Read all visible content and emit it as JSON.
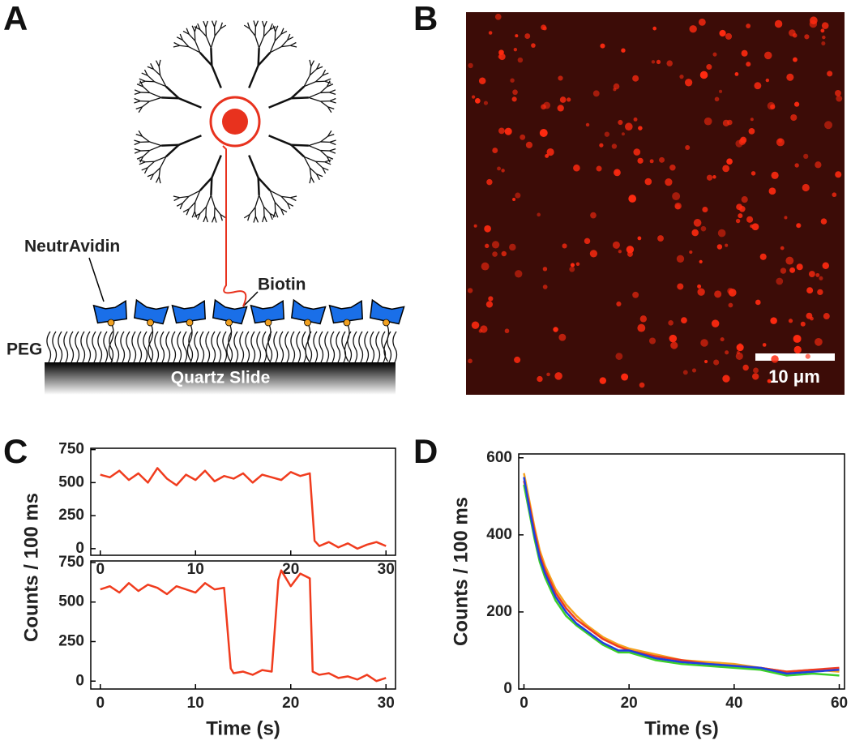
{
  "panel_labels": [
    "A",
    "B",
    "C",
    "D"
  ],
  "diagram": {
    "neutravidin": "NeutrAvidin",
    "biotin": "Biotin",
    "peg": "PEG",
    "slide": "Quartz Slide"
  },
  "micrograph": {
    "scale_bar": "10 μm"
  },
  "chart_data": [
    {
      "type": "line",
      "y_label": "Counts / 100 ms",
      "x": [
        0,
        1,
        2,
        3,
        4,
        5,
        6,
        7,
        8,
        9,
        10,
        11,
        12,
        13,
        14,
        15,
        16,
        17,
        18,
        19,
        20,
        21,
        22,
        22.5,
        23,
        24,
        25,
        26,
        27,
        28,
        29,
        30
      ],
      "series": [
        {
          "color": "#f03c1e",
          "values": [
            560,
            540,
            590,
            520,
            570,
            500,
            610,
            530,
            480,
            560,
            520,
            590,
            510,
            550,
            530,
            570,
            500,
            560,
            540,
            520,
            580,
            550,
            570,
            60,
            20,
            50,
            10,
            40,
            0,
            30,
            50,
            20
          ]
        }
      ],
      "xlim": [
        -1,
        31
      ],
      "xticks": [
        0,
        10,
        20,
        30
      ],
      "ylim": [
        -50,
        760
      ],
      "yticks": [
        0,
        250,
        500,
        750
      ]
    },
    {
      "type": "line",
      "x_label": "Time (s)",
      "x": [
        0,
        1,
        2,
        3,
        4,
        5,
        6,
        7,
        8,
        9,
        10,
        11,
        12,
        13,
        13.7,
        14,
        15,
        16,
        17,
        18,
        18.7,
        19,
        20,
        21,
        22,
        22.3,
        23,
        24,
        25,
        26,
        27,
        28,
        29,
        30
      ],
      "series": [
        {
          "color": "#f03c1e",
          "values": [
            580,
            600,
            560,
            620,
            570,
            610,
            590,
            550,
            600,
            580,
            560,
            620,
            580,
            590,
            80,
            50,
            60,
            40,
            70,
            60,
            640,
            700,
            600,
            680,
            650,
            60,
            40,
            50,
            20,
            30,
            10,
            40,
            0,
            20
          ]
        }
      ],
      "xlim": [
        -1,
        31
      ],
      "xticks": [
        0,
        10,
        20,
        30
      ],
      "ylim": [
        -50,
        760
      ],
      "yticks": [
        0,
        250,
        500,
        750
      ]
    },
    {
      "type": "line",
      "y_label": "Counts / 100 ms",
      "x_label": "Time (s)",
      "x": [
        0,
        1,
        2,
        3,
        4,
        6,
        8,
        10,
        12,
        15,
        18,
        20,
        25,
        30,
        35,
        40,
        45,
        50,
        55,
        60
      ],
      "series": [
        {
          "color": "#f5a21e",
          "values": [
            560,
            490,
            420,
            360,
            320,
            260,
            220,
            190,
            165,
            135,
            115,
            105,
            90,
            75,
            70,
            65,
            55,
            45,
            50,
            45
          ]
        },
        {
          "color": "#ee3a22",
          "values": [
            540,
            480,
            410,
            350,
            310,
            250,
            210,
            180,
            160,
            130,
            110,
            100,
            85,
            75,
            65,
            60,
            55,
            45,
            50,
            55
          ]
        },
        {
          "color": "#3ccf2a",
          "values": [
            530,
            460,
            390,
            330,
            290,
            230,
            190,
            165,
            145,
            115,
            95,
            95,
            75,
            65,
            60,
            55,
            50,
            35,
            40,
            35
          ]
        },
        {
          "color": "#1f3fe0",
          "values": [
            550,
            470,
            400,
            340,
            300,
            240,
            200,
            170,
            150,
            120,
            100,
            100,
            80,
            70,
            65,
            60,
            55,
            40,
            45,
            50
          ]
        }
      ],
      "xlim": [
        -1,
        61
      ],
      "xticks": [
        0,
        20,
        40,
        60
      ],
      "ylim": [
        0,
        610
      ],
      "yticks": [
        0,
        200,
        400,
        600
      ]
    }
  ]
}
